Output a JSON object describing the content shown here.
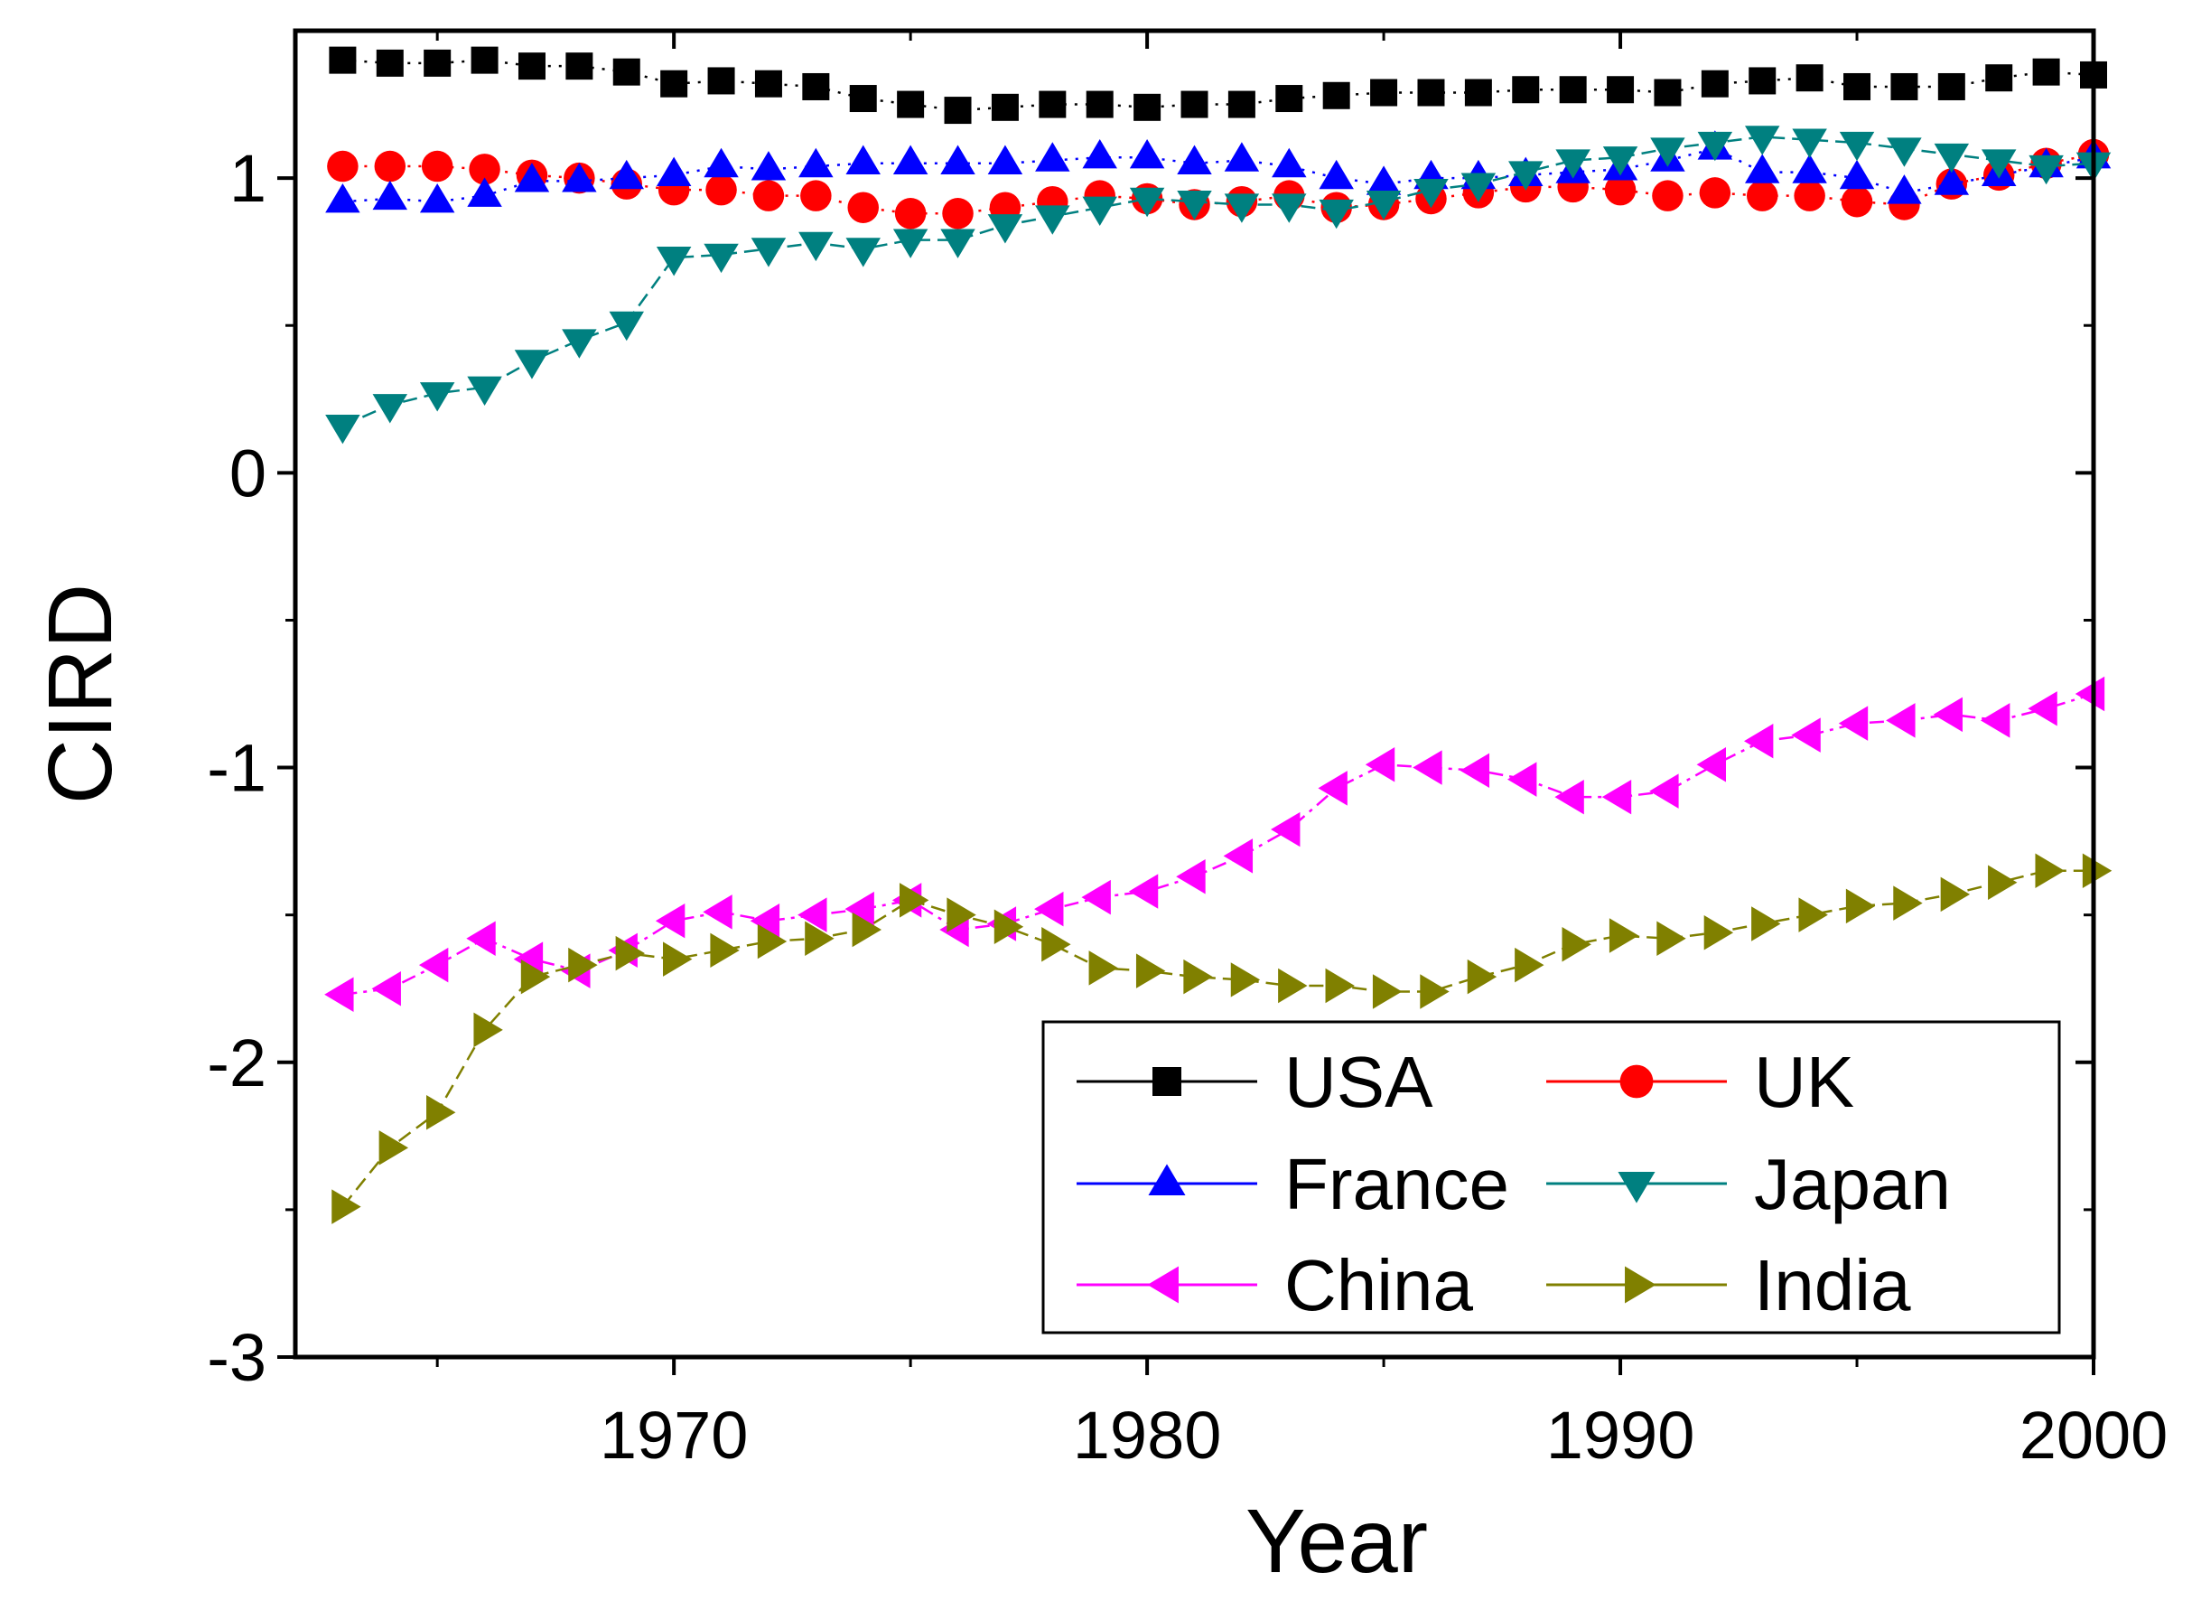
{
  "chart_data": {
    "type": "line",
    "title": "",
    "xlabel": "Year",
    "ylabel": "CIRD",
    "xlim": [
      1962,
      2000
    ],
    "ylim": [
      -3,
      1.5
    ],
    "xticks": [
      1970,
      1980,
      1990,
      2000
    ],
    "xtick_labels": [
      "1970",
      "1980",
      "1990",
      "2000"
    ],
    "yticks": [
      -3,
      -2,
      -1,
      0,
      1
    ],
    "ytick_labels": [
      "-3",
      "-2",
      "-1",
      "0",
      "1"
    ],
    "grid": false,
    "legend_position": "bottom-right",
    "x": [
      1963,
      1964,
      1965,
      1966,
      1967,
      1968,
      1969,
      1970,
      1971,
      1972,
      1973,
      1974,
      1975,
      1976,
      1977,
      1978,
      1979,
      1980,
      1981,
      1982,
      1983,
      1984,
      1985,
      1986,
      1987,
      1988,
      1989,
      1990,
      1991,
      1992,
      1993,
      1994,
      1995,
      1996,
      1997,
      1998,
      1999,
      2000
    ],
    "series": [
      {
        "name": "USA",
        "color": "#000000",
        "marker": "square",
        "line": "dotted",
        "values": [
          1.4,
          1.39,
          1.39,
          1.4,
          1.38,
          1.38,
          1.36,
          1.32,
          1.33,
          1.32,
          1.31,
          1.27,
          1.25,
          1.23,
          1.24,
          1.25,
          1.25,
          1.24,
          1.25,
          1.25,
          1.27,
          1.28,
          1.29,
          1.29,
          1.29,
          1.3,
          1.3,
          1.3,
          1.29,
          1.32,
          1.33,
          1.34,
          1.31,
          1.31,
          1.31,
          1.34,
          1.36,
          1.35
        ]
      },
      {
        "name": "UK",
        "color": "#ff0000",
        "marker": "circle",
        "line": "dotted",
        "values": [
          1.04,
          1.04,
          1.04,
          1.03,
          1.01,
          1.0,
          0.98,
          0.96,
          0.96,
          0.94,
          0.94,
          0.9,
          0.88,
          0.88,
          0.9,
          0.92,
          0.94,
          0.93,
          0.91,
          0.92,
          0.94,
          0.9,
          0.91,
          0.93,
          0.95,
          0.97,
          0.97,
          0.96,
          0.94,
          0.95,
          0.94,
          0.94,
          0.92,
          0.91,
          0.98,
          1.01,
          1.05,
          1.08
        ]
      },
      {
        "name": "France",
        "color": "#0000ff",
        "marker": "triangle-up",
        "line": "dotted",
        "values": [
          0.92,
          0.93,
          0.92,
          0.94,
          0.99,
          0.99,
          1.0,
          1.01,
          1.04,
          1.03,
          1.04,
          1.05,
          1.05,
          1.05,
          1.05,
          1.06,
          1.07,
          1.07,
          1.05,
          1.06,
          1.04,
          1.0,
          0.98,
          1.0,
          1.0,
          1.01,
          1.02,
          1.03,
          1.06,
          1.1,
          1.02,
          1.02,
          1.0,
          0.95,
          0.98,
          1.01,
          1.04,
          1.07
        ]
      },
      {
        "name": "Japan",
        "color": "#008080",
        "marker": "triangle-down",
        "line": "dashed",
        "values": [
          0.16,
          0.23,
          0.27,
          0.29,
          0.38,
          0.45,
          0.51,
          0.73,
          0.74,
          0.76,
          0.78,
          0.76,
          0.79,
          0.79,
          0.84,
          0.87,
          0.9,
          0.93,
          0.92,
          0.91,
          0.91,
          0.89,
          0.92,
          0.96,
          0.98,
          1.02,
          1.06,
          1.07,
          1.1,
          1.12,
          1.14,
          1.13,
          1.12,
          1.1,
          1.08,
          1.06,
          1.04,
          1.05
        ]
      },
      {
        "name": "China",
        "color": "#ff00ff",
        "marker": "triangle-left",
        "line": "dashdot",
        "values": [
          -1.77,
          -1.75,
          -1.67,
          -1.58,
          -1.65,
          -1.69,
          -1.62,
          -1.52,
          -1.49,
          -1.52,
          -1.5,
          -1.48,
          -1.45,
          -1.55,
          -1.53,
          -1.48,
          -1.44,
          -1.42,
          -1.37,
          -1.3,
          -1.21,
          -1.07,
          -0.99,
          -1.0,
          -1.01,
          -1.04,
          -1.1,
          -1.1,
          -1.08,
          -0.99,
          -0.91,
          -0.89,
          -0.85,
          -0.84,
          -0.82,
          -0.84,
          -0.8,
          -0.75
        ]
      },
      {
        "name": "India",
        "color": "#808000",
        "marker": "triangle-right",
        "line": "dashed",
        "values": [
          -2.49,
          -2.29,
          -2.17,
          -1.89,
          -1.71,
          -1.67,
          -1.63,
          -1.65,
          -1.62,
          -1.59,
          -1.58,
          -1.55,
          -1.45,
          -1.5,
          -1.54,
          -1.6,
          -1.68,
          -1.69,
          -1.71,
          -1.72,
          -1.74,
          -1.74,
          -1.76,
          -1.76,
          -1.71,
          -1.67,
          -1.6,
          -1.57,
          -1.58,
          -1.56,
          -1.53,
          -1.5,
          -1.47,
          -1.46,
          -1.43,
          -1.39,
          -1.35,
          -1.35
        ]
      }
    ]
  }
}
